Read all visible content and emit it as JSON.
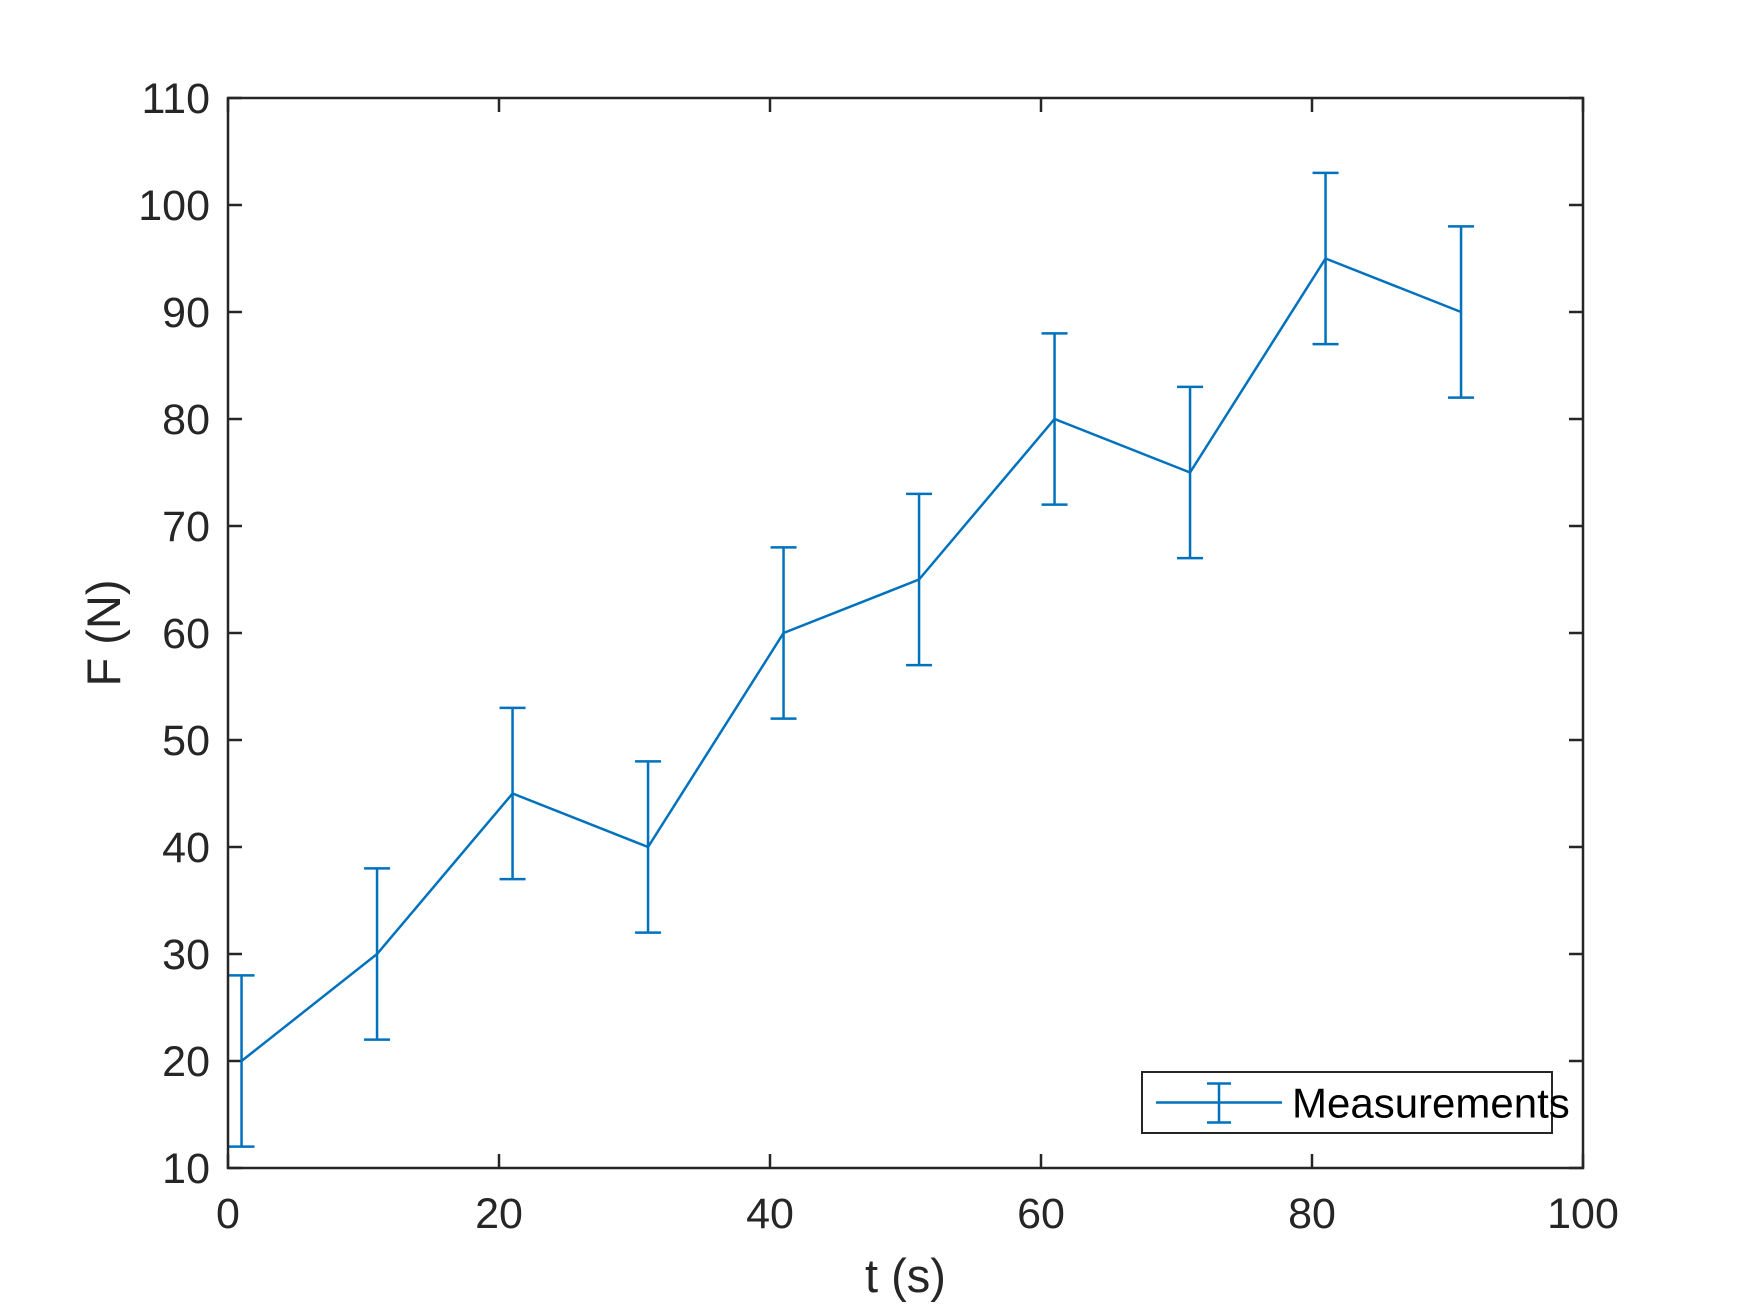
{
  "chart_data": {
    "type": "line",
    "subtype": "errorbar",
    "title": "",
    "xlabel": "t (s)",
    "ylabel": "F (N)",
    "series": [
      {
        "name": "Measurements",
        "x": [
          1,
          11,
          21,
          31,
          41,
          51,
          61,
          71,
          81,
          91
        ],
        "y": [
          20,
          30,
          45,
          40,
          60,
          65,
          80,
          75,
          95,
          90
        ],
        "yerr": [
          8,
          8,
          8,
          8,
          8,
          8,
          8,
          8,
          8,
          8
        ]
      }
    ],
    "xlim": [
      0,
      100
    ],
    "ylim": [
      10,
      110
    ],
    "xticks": [
      0,
      20,
      40,
      60,
      80,
      100
    ],
    "yticks": [
      10,
      20,
      30,
      40,
      50,
      60,
      70,
      80,
      90,
      100,
      110
    ],
    "grid": false,
    "legend": {
      "label": "Measurements",
      "position": "southeast"
    },
    "colors": {
      "line": "#0072BD",
      "axis": "#262626",
      "legend_border": "#262626",
      "background": "#ffffff"
    }
  }
}
